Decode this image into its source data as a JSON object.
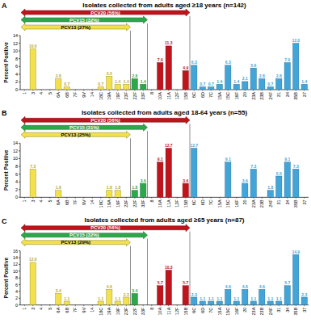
{
  "chart_data": [
    {
      "type": "bar",
      "panel": "A",
      "title": "Isolates collected from adults aged ≥18 years (n=142)",
      "y_label": "Percent Positive",
      "categories": [
        "1",
        "3",
        "4",
        "5",
        "6A",
        "6B",
        "7F",
        "9V",
        "14",
        "18C",
        "19A",
        "19F",
        "23F",
        "22F",
        "33F",
        "8",
        "10A",
        "11A",
        "12F",
        "15B",
        "6C",
        "6D",
        "7C",
        "15A",
        "15C",
        "16F",
        "20",
        "23A",
        "23B",
        "24F",
        "31",
        "34",
        "35B",
        "37"
      ],
      "values": [
        null,
        10.6,
        null,
        null,
        2.8,
        0.7,
        null,
        null,
        null,
        0.7,
        3.5,
        1.4,
        1.4,
        2.8,
        1.4,
        null,
        7.0,
        11.3,
        null,
        4.9,
        6.3,
        0.7,
        0.7,
        1.4,
        6.3,
        1.4,
        2.1,
        5.6,
        2.8,
        0.7,
        2.8,
        7.0,
        12.0,
        1.4
      ],
      "value_labels": [
        null,
        "10.6",
        null,
        null,
        "2.8",
        "0.7",
        null,
        null,
        null,
        "0.7",
        "3.5",
        "1.4",
        "1.4",
        "2.8",
        "1.4",
        null,
        "7.0",
        "11.3",
        null,
        "4.9",
        "6.3",
        "0.7",
        "0.7",
        "1.4",
        "6.3",
        "1.4",
        "2.1",
        "5.6",
        "2.8",
        "0.7",
        "2.8",
        "7.0",
        "12.0",
        "1.4"
      ],
      "colors": [
        "#f2e14c",
        "#f2e14c",
        "#f2e14c",
        "#f2e14c",
        "#f2e14c",
        "#f2e14c",
        "#f2e14c",
        "#f2e14c",
        "#f2e14c",
        "#f2e14c",
        "#f2e14c",
        "#f2e14c",
        "#f2e14c",
        "#2ca84a",
        "#2ca84a",
        "#c0141c",
        "#c0141c",
        "#c0141c",
        "#c0141c",
        "#c0141c",
        "#41a5d9",
        "#41a5d9",
        "#41a5d9",
        "#41a5d9",
        "#41a5d9",
        "#41a5d9",
        "#41a5d9",
        "#41a5d9",
        "#41a5d9",
        "#41a5d9",
        "#41a5d9",
        "#41a5d9",
        "#41a5d9",
        "#41a5d9"
      ],
      "data_labels": true,
      "ylim": [
        0,
        14
      ],
      "yticks": [
        0,
        2,
        4,
        6,
        8,
        10,
        12,
        14
      ],
      "annotations": [
        {
          "text": "PCV20 (56%)",
          "color": "#c0141c",
          "first": "1",
          "last": "15B"
        },
        {
          "text": "PCV15 (32%)",
          "color": "#2ca84a",
          "first": "1",
          "last": "33F"
        },
        {
          "text": "PCV13 (27%)",
          "color": "#f2e14c",
          "first": "1",
          "last": "23F"
        }
      ]
    },
    {
      "type": "bar",
      "panel": "B",
      "title": "Isolates collected from adults aged 18-64 years (n=55)",
      "y_label": "Percent Positive",
      "categories": [
        "1",
        "3",
        "4",
        "5",
        "6A",
        "6B",
        "7F",
        "9V",
        "14",
        "18C",
        "19A",
        "19F",
        "23F",
        "22F",
        "33F",
        "8",
        "10A",
        "11A",
        "12F",
        "15B",
        "6C",
        "6D",
        "7C",
        "15A",
        "15C",
        "16F",
        "20",
        "23A",
        "23B",
        "24F",
        "31",
        "34",
        "35B",
        "37"
      ],
      "values": [
        null,
        7.3,
        null,
        null,
        1.8,
        null,
        null,
        null,
        null,
        null,
        1.8,
        1.8,
        null,
        1.8,
        3.6,
        null,
        9.1,
        12.7,
        null,
        3.6,
        12.7,
        null,
        null,
        null,
        9.1,
        null,
        3.6,
        7.3,
        null,
        1.8,
        5.5,
        9.1,
        7.3,
        null
      ],
      "value_labels": [
        null,
        "7.3",
        null,
        null,
        "1.8",
        null,
        null,
        null,
        null,
        null,
        "1.8",
        "1.8",
        null,
        "1.8",
        "3.6",
        null,
        "9.1",
        "12.7",
        null,
        "3.6",
        "12.7",
        null,
        null,
        null,
        "9.1",
        null,
        "3.6",
        "7.3",
        null,
        "1.8",
        "5.5",
        "9.1",
        "7.3",
        null
      ],
      "colors": [
        "#f2e14c",
        "#f2e14c",
        "#f2e14c",
        "#f2e14c",
        "#f2e14c",
        "#f2e14c",
        "#f2e14c",
        "#f2e14c",
        "#f2e14c",
        "#f2e14c",
        "#f2e14c",
        "#f2e14c",
        "#f2e14c",
        "#2ca84a",
        "#2ca84a",
        "#c0141c",
        "#c0141c",
        "#c0141c",
        "#c0141c",
        "#c0141c",
        "#41a5d9",
        "#41a5d9",
        "#41a5d9",
        "#41a5d9",
        "#41a5d9",
        "#41a5d9",
        "#41a5d9",
        "#41a5d9",
        "#41a5d9",
        "#41a5d9",
        "#41a5d9",
        "#41a5d9",
        "#41a5d9",
        "#41a5d9"
      ],
      "data_labels": true,
      "ylim": [
        0,
        14
      ],
      "yticks": [
        0,
        2,
        4,
        6,
        8,
        10,
        12,
        14
      ],
      "annotations": [
        {
          "text": "PCV20 (56%)",
          "color": "#c0141c",
          "first": "1",
          "last": "15B"
        },
        {
          "text": "PCV15 (31%)",
          "color": "#2ca84a",
          "first": "1",
          "last": "33F"
        },
        {
          "text": "PCV13 (25%)",
          "color": "#f2e14c",
          "first": "1",
          "last": "23F"
        }
      ]
    },
    {
      "type": "bar",
      "panel": "C",
      "title": "Isolates collected from adults aged ≥65 years (n=87)",
      "y_label": "Percent Positive",
      "categories": [
        "1",
        "3",
        "4",
        "5",
        "6A",
        "6B",
        "7F",
        "9V",
        "14",
        "18C",
        "19A",
        "19F",
        "23F",
        "22F",
        "33F",
        "8",
        "10A",
        "11A",
        "12F",
        "15B",
        "6C",
        "6D",
        "7C",
        "15A",
        "15C",
        "16F",
        "20",
        "23A",
        "23B",
        "24F",
        "31",
        "34",
        "35B",
        "37"
      ],
      "values": [
        null,
        12.6,
        null,
        null,
        3.4,
        1.1,
        null,
        null,
        null,
        1.1,
        4.6,
        1.1,
        2.3,
        3.4,
        null,
        null,
        5.7,
        10.3,
        null,
        5.7,
        2.3,
        1.1,
        1.1,
        1.1,
        4.6,
        1.1,
        4.6,
        1.1,
        4.6,
        1.1,
        1.1,
        5.7,
        14.9,
        2.3
      ],
      "value_labels": [
        null,
        "12.6",
        null,
        null,
        "3.4",
        "1.1",
        null,
        null,
        null,
        "1.1",
        "4.6",
        "1.1",
        "2.3",
        "3.4",
        null,
        null,
        "5.7",
        "10.3",
        null,
        "5.7",
        "2.3",
        "1.1",
        "1.1",
        "1.1",
        "4.6",
        "1.1",
        "4.6",
        "1.1",
        "4.6",
        "1.1",
        "1.1",
        "5.7",
        "14.9",
        "2.3"
      ],
      "colors": [
        "#f2e14c",
        "#f2e14c",
        "#f2e14c",
        "#f2e14c",
        "#f2e14c",
        "#f2e14c",
        "#f2e14c",
        "#f2e14c",
        "#f2e14c",
        "#f2e14c",
        "#f2e14c",
        "#f2e14c",
        "#f2e14c",
        "#2ca84a",
        "#2ca84a",
        "#c0141c",
        "#c0141c",
        "#c0141c",
        "#c0141c",
        "#c0141c",
        "#41a5d9",
        "#41a5d9",
        "#41a5d9",
        "#41a5d9",
        "#41a5d9",
        "#41a5d9",
        "#41a5d9",
        "#41a5d9",
        "#41a5d9",
        "#41a5d9",
        "#41a5d9",
        "#41a5d9",
        "#41a5d9",
        "#41a5d9"
      ],
      "data_labels": true,
      "ylim": [
        0,
        16
      ],
      "yticks": [
        0,
        2,
        4,
        6,
        8,
        10,
        12,
        14,
        16
      ],
      "annotations": [
        {
          "text": "PCV20 (56%)",
          "color": "#c0141c",
          "first": "1",
          "last": "15B"
        },
        {
          "text": "PCV15 (32%)",
          "color": "#2ca84a",
          "first": "1",
          "last": "33F"
        },
        {
          "text": "PCV13 (29%)",
          "color": "#f2e14c",
          "first": "1",
          "last": "23F"
        }
      ]
    }
  ]
}
